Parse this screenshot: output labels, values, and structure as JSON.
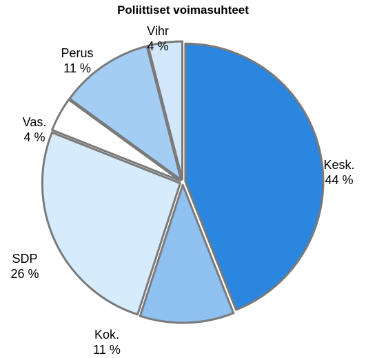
{
  "chart_data": {
    "type": "pie",
    "title": "Poliittiset voimasuhteet",
    "slices": [
      {
        "label": "Kesk.",
        "value": 44,
        "value_text": "44 %",
        "color": "#2a86de"
      },
      {
        "label": "Kok.",
        "value": 11,
        "value_text": "11 %",
        "color": "#8ec0f0"
      },
      {
        "label": "SDP",
        "value": 26,
        "value_text": "26 %",
        "color": "#d6ebfc"
      },
      {
        "label": "Vas.",
        "value": 4,
        "value_text": "4 %",
        "color": "#ffffff"
      },
      {
        "label": "Perus",
        "value": 11,
        "value_text": "11 %",
        "color": "#a4cdf4"
      },
      {
        "label": "Vihr",
        "value": 4,
        "value_text": "4 %",
        "color": "#d3e7fb"
      }
    ],
    "legend": "none"
  }
}
